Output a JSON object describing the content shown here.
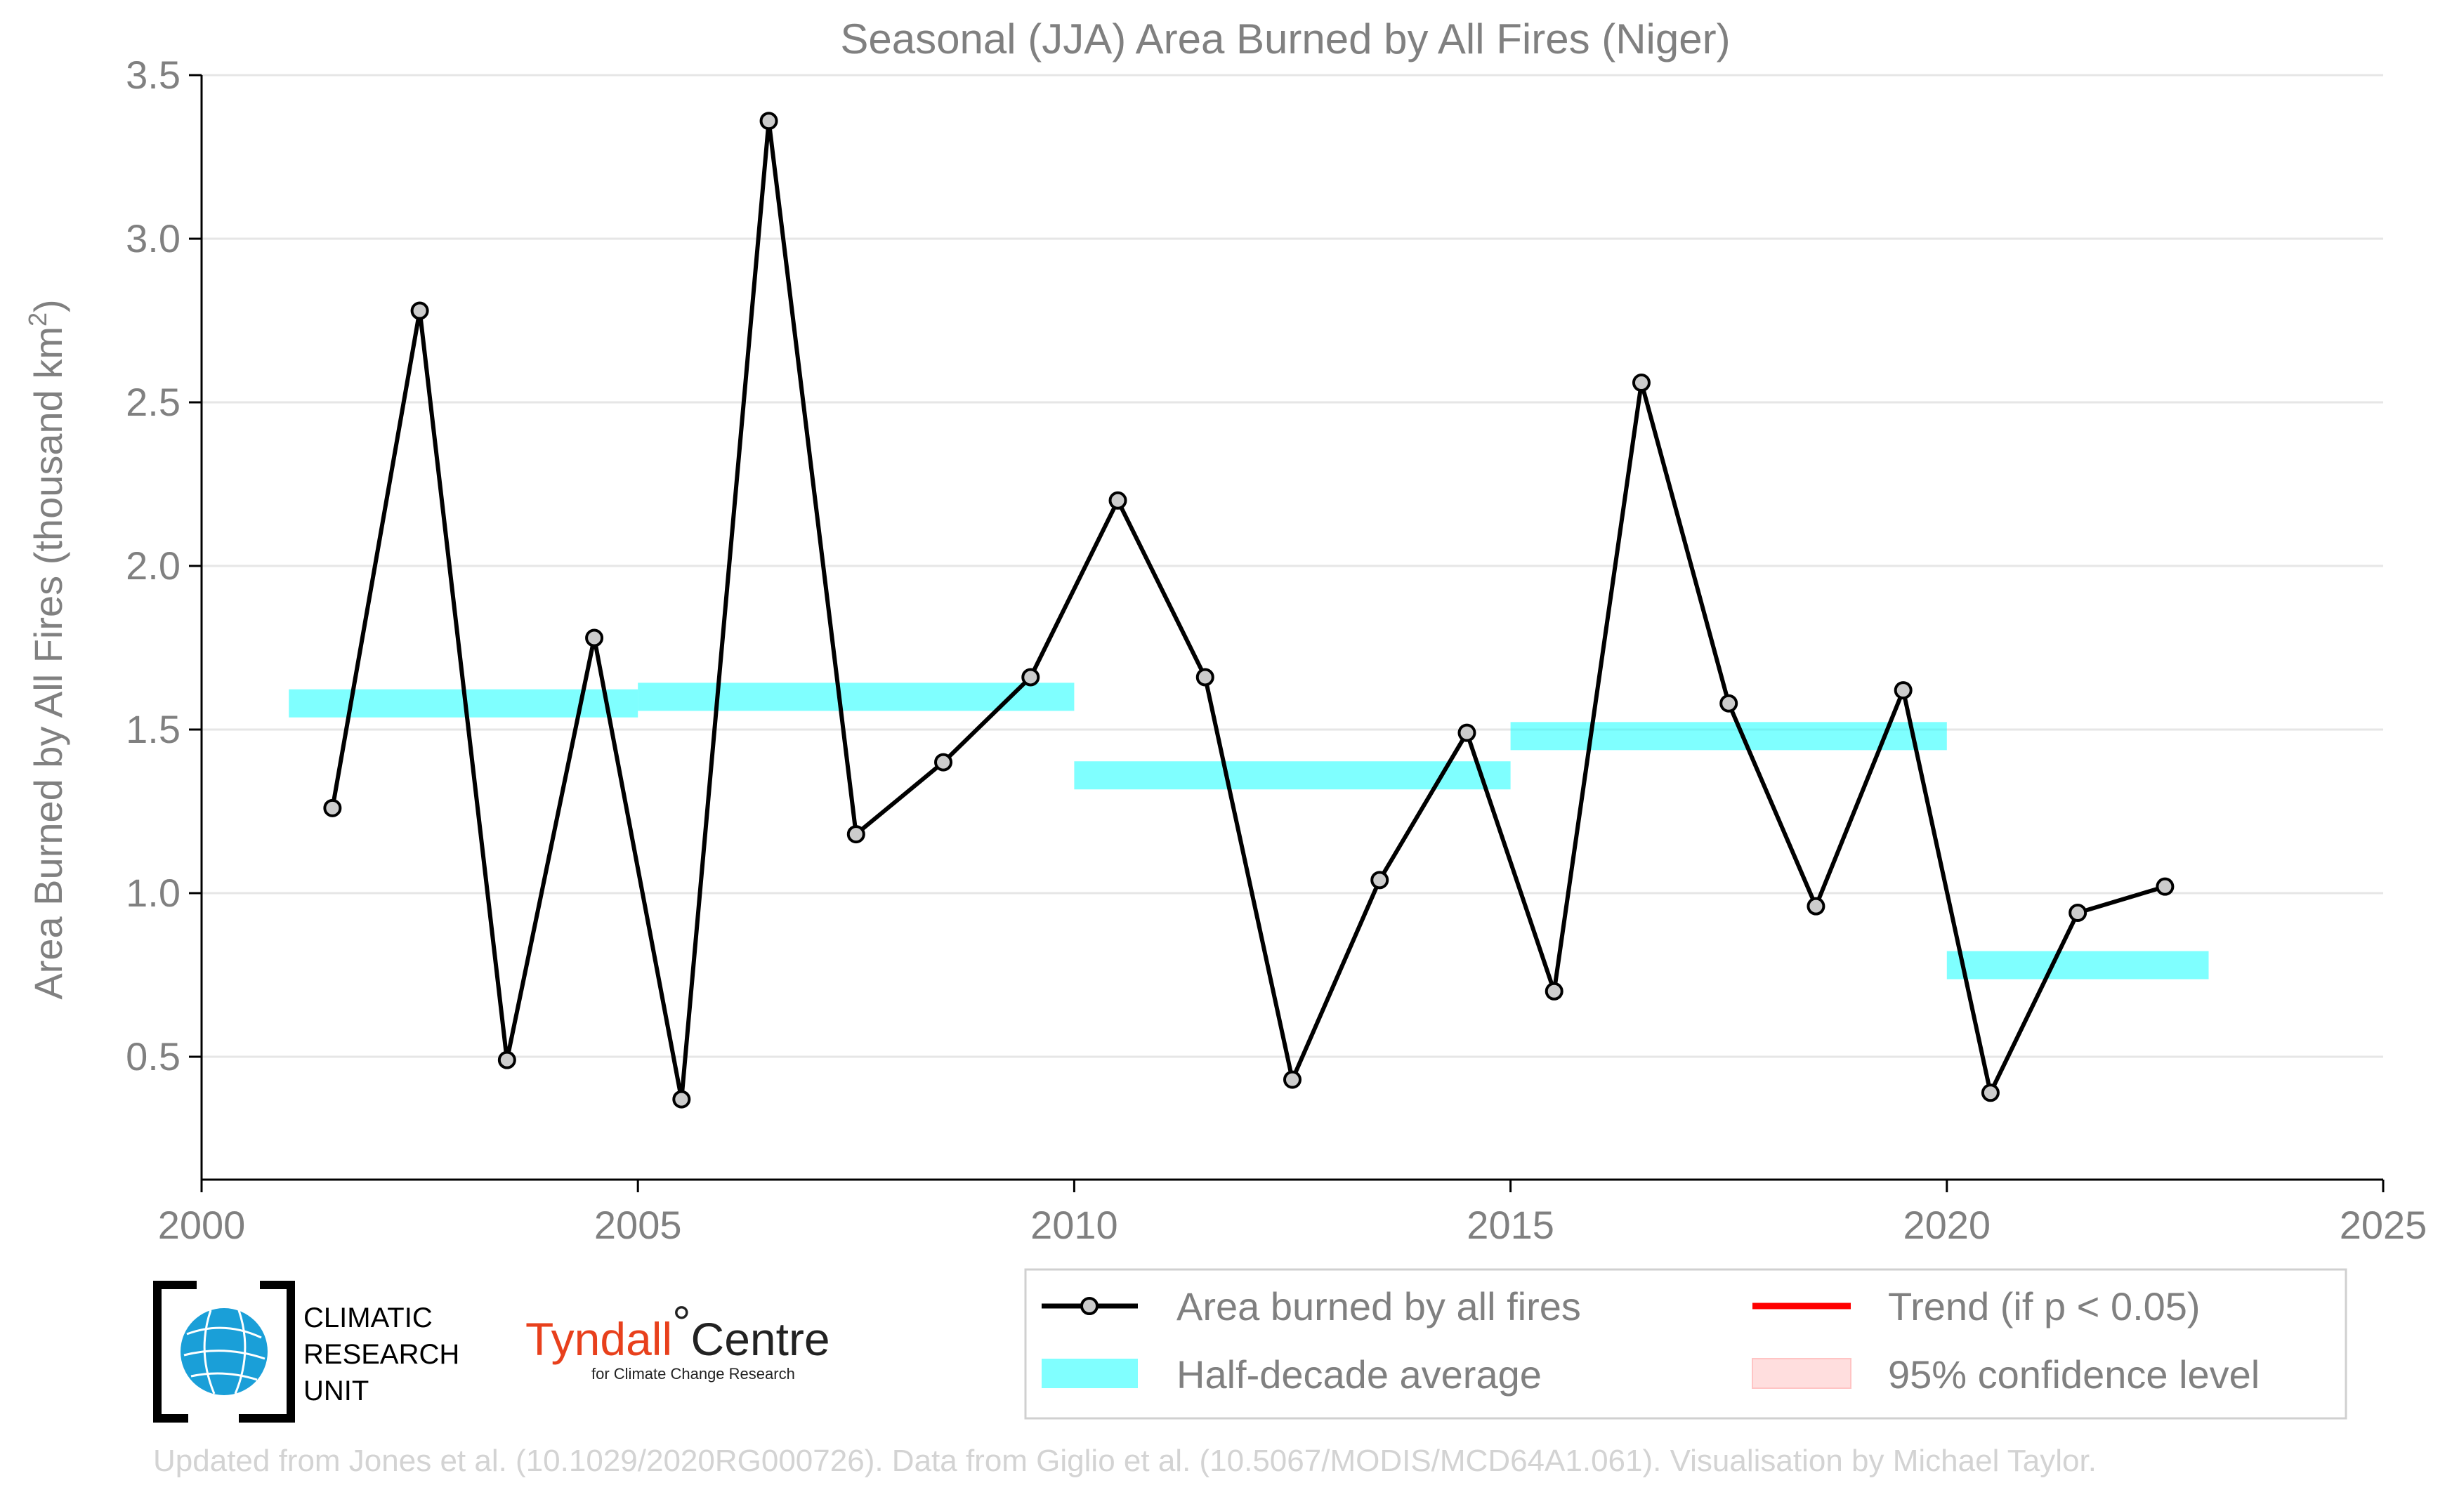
{
  "chart_data": {
    "type": "line",
    "title": "Seasonal (JJA) Area Burned by All Fires (Niger)",
    "xlabel": "",
    "ylabel": "Area Burned by All Fires (thousand km",
    "ylabel_sup": "2",
    "ylabel_close": ")",
    "xlim": [
      2000,
      2025
    ],
    "ylim": [
      0.12,
      3.5
    ],
    "x_ticks": [
      2000,
      2005,
      2010,
      2015,
      2020,
      2025
    ],
    "x_tick_labels": [
      "2000",
      "2005",
      "2010",
      "2015",
      "2020",
      "2025"
    ],
    "y_ticks": [
      0.5,
      1.0,
      1.5,
      2.0,
      2.5,
      3.0,
      3.5
    ],
    "y_tick_labels": [
      "0.5",
      "1.0",
      "1.5",
      "2.0",
      "2.5",
      "3.0",
      "3.5"
    ],
    "grid": true,
    "legend_position": "bottom-right",
    "series": [
      {
        "name": "Area burned by all fires",
        "color": "#000000",
        "marker_fill": "#cccccc",
        "x": [
          2001.5,
          2002.5,
          2003.5,
          2004.5,
          2005.5,
          2006.5,
          2007.5,
          2008.5,
          2009.5,
          2010.5,
          2011.5,
          2012.5,
          2013.5,
          2014.5,
          2015.5,
          2016.5,
          2017.5,
          2018.5,
          2019.5,
          2020.5,
          2021.5,
          2022.5
        ],
        "values": [
          1.26,
          2.78,
          0.49,
          1.78,
          0.37,
          3.36,
          1.18,
          1.4,
          1.66,
          2.2,
          1.66,
          0.43,
          1.04,
          1.49,
          0.7,
          2.56,
          1.58,
          0.96,
          1.62,
          0.39,
          0.94,
          1.02
        ]
      }
    ],
    "half_decade_average": {
      "name": "Half-decade average",
      "color": "#00ffff",
      "segments": [
        {
          "x_start": 2001,
          "x_end": 2005,
          "value": 1.58
        },
        {
          "x_start": 2005,
          "x_end": 2010,
          "value": 1.6
        },
        {
          "x_start": 2010,
          "x_end": 2015,
          "value": 1.36
        },
        {
          "x_start": 2015,
          "x_end": 2020,
          "value": 1.48
        },
        {
          "x_start": 2020,
          "x_end": 2023,
          "value": 0.78
        }
      ]
    },
    "legend": [
      {
        "label": "Area burned by all fires",
        "kind": "line-marker",
        "color": "#000000"
      },
      {
        "label": "Trend (if p < 0.05)",
        "kind": "line",
        "color": "#ff0000"
      },
      {
        "label": "Half-decade average",
        "kind": "band",
        "color": "#80ffff"
      },
      {
        "label": "95% confidence level",
        "kind": "band",
        "color": "#ffdede"
      }
    ]
  },
  "logos": {
    "cru": {
      "line1": "CLIMATIC",
      "line2": "RESEARCH",
      "line3": "UNIT",
      "icon": "globe-icon"
    },
    "tyndall": {
      "name_part1": "Tyndall",
      "degree": "°",
      "name_part2": "Centre",
      "subtitle": "for Climate Change Research"
    }
  },
  "credit": "Updated from Jones et al. (10.1029/2020RG000726). Data from Giglio et al. (10.5067/MODIS/MCD64A1.061). Visualisation by Michael Taylor."
}
